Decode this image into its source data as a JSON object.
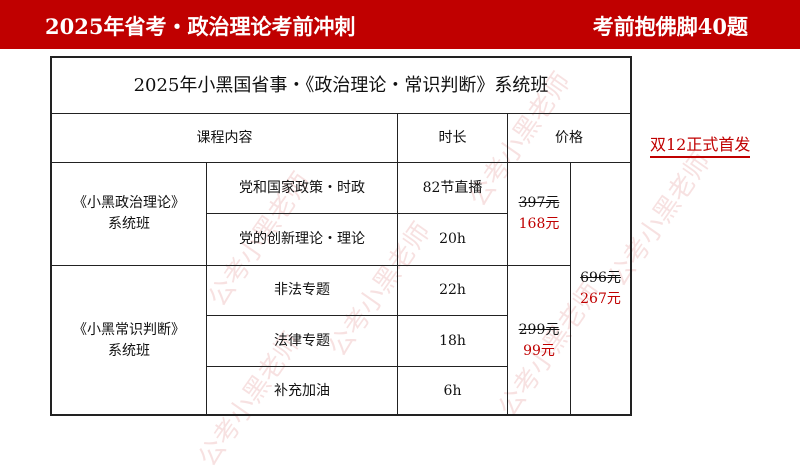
{
  "banner": {
    "left": "2025年省考・政治理论考前冲刺",
    "right": "考前抱佛脚40题"
  },
  "table": {
    "title": "2025年小黑国省事・《政治理论・常识判断》系统班",
    "headers": {
      "content": "课程内容",
      "duration": "时长",
      "price": "价格"
    },
    "groups": [
      {
        "name": "《小黑政治理论》",
        "sub": "系统班",
        "old_price": "397元",
        "new_price": "168元",
        "rows": [
          {
            "topic": "党和国家政策・时政",
            "duration": "82节直播"
          },
          {
            "topic": "党的创新理论・理论",
            "duration": "20h"
          }
        ]
      },
      {
        "name": "《小黑常识判断》",
        "sub": "系统班",
        "old_price": "299元",
        "new_price": "99元",
        "rows": [
          {
            "topic": "非法专题",
            "duration": "22h"
          },
          {
            "topic": "法律专题",
            "duration": "18h"
          },
          {
            "topic": "补充加油",
            "duration": "6h"
          }
        ]
      }
    ],
    "bundle": {
      "old_price": "696元",
      "new_price": "267元"
    }
  },
  "promo": "双12正式首发",
  "watermark": "公考小黑老师",
  "colors": {
    "brand_red": "#c00000"
  }
}
